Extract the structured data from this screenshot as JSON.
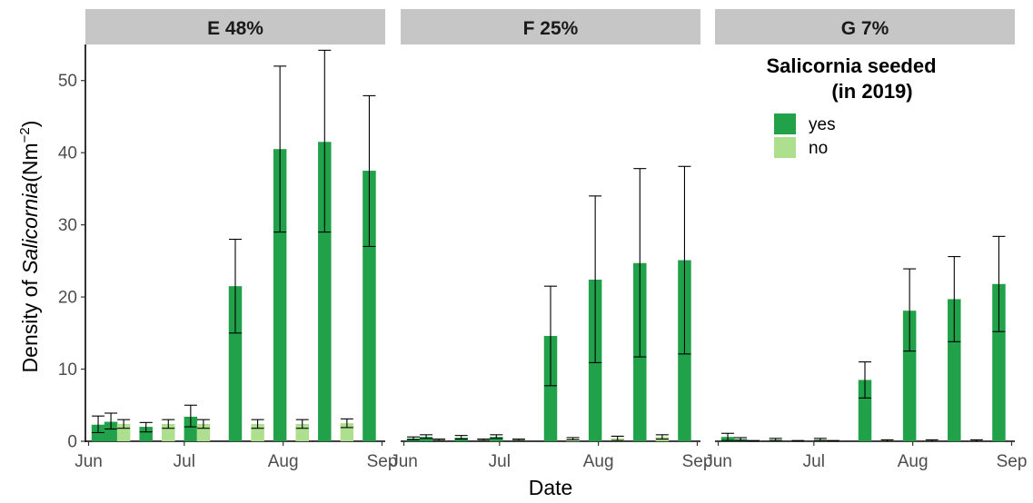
{
  "chart_data": {
    "type": "bar",
    "xlabel": "Date",
    "ylabel_prefix": "Density of ",
    "ylabel_italic": "Salicornia",
    "ylabel_unit": "(Nm",
    "ylabel_exp": "−2",
    "ylabel_close": ")",
    "ylim": [
      0,
      55
    ],
    "y_ticks": [
      0,
      10,
      20,
      30,
      40,
      50
    ],
    "x_ticks": [
      "Jun",
      "Jul",
      "Aug",
      "Sep"
    ],
    "x_range": [
      "2019-05-31",
      "2019-09-02"
    ],
    "grid": false,
    "legend": {
      "title_line1": "Salicornia seeded",
      "title_line2": "(in 2019)",
      "position": "top-right",
      "entries": [
        {
          "label": "yes",
          "color": "#22a14b"
        },
        {
          "label": "no",
          "color": "#addf8f"
        }
      ]
    },
    "panels": [
      {
        "title": "E 48%",
        "series": [
          {
            "name": "yes",
            "color": "#22a14b",
            "points": [
              {
                "date": "2019-06-04",
                "mean": 2.3,
                "lo": 1.2,
                "hi": 3.5
              },
              {
                "date": "2019-06-08",
                "mean": 2.7,
                "lo": 1.7,
                "hi": 3.9
              },
              {
                "date": "2019-06-19",
                "mean": 2.0,
                "lo": 1.3,
                "hi": 2.6
              },
              {
                "date": "2019-07-03",
                "mean": 3.4,
                "lo": 2.0,
                "hi": 5.0
              },
              {
                "date": "2019-07-17",
                "mean": 21.5,
                "lo": 15.0,
                "hi": 28.0
              },
              {
                "date": "2019-07-31",
                "mean": 40.5,
                "lo": 29.0,
                "hi": 52.0
              },
              {
                "date": "2019-08-14",
                "mean": 41.5,
                "lo": 29.0,
                "hi": 54.2
              },
              {
                "date": "2019-08-28",
                "mean": 37.5,
                "lo": 27.0,
                "hi": 47.9
              }
            ]
          },
          {
            "name": "no",
            "color": "#addf8f",
            "points": [
              {
                "date": "2019-06-12",
                "mean": 2.4,
                "lo": 1.8,
                "hi": 3.0
              },
              {
                "date": "2019-06-26",
                "mean": 2.4,
                "lo": 1.8,
                "hi": 3.0
              },
              {
                "date": "2019-07-07",
                "mean": 2.4,
                "lo": 1.8,
                "hi": 3.0
              },
              {
                "date": "2019-07-24",
                "mean": 2.4,
                "lo": 1.8,
                "hi": 3.0
              },
              {
                "date": "2019-08-07",
                "mean": 2.4,
                "lo": 1.8,
                "hi": 3.0
              },
              {
                "date": "2019-08-21",
                "mean": 2.5,
                "lo": 1.9,
                "hi": 3.1
              }
            ]
          }
        ]
      },
      {
        "title": "F 25%",
        "series": [
          {
            "name": "yes",
            "color": "#22a14b",
            "points": [
              {
                "date": "2019-06-04",
                "mean": 0.4,
                "lo": 0.2,
                "hi": 0.6
              },
              {
                "date": "2019-06-08",
                "mean": 0.6,
                "lo": 0.4,
                "hi": 0.9
              },
              {
                "date": "2019-06-19",
                "mean": 0.5,
                "lo": 0.3,
                "hi": 0.8
              },
              {
                "date": "2019-06-30",
                "mean": 0.6,
                "lo": 0.4,
                "hi": 0.9
              },
              {
                "date": "2019-07-17",
                "mean": 14.6,
                "lo": 7.7,
                "hi": 21.5
              },
              {
                "date": "2019-07-31",
                "mean": 22.4,
                "lo": 10.9,
                "hi": 34.0
              },
              {
                "date": "2019-08-14",
                "mean": 24.7,
                "lo": 11.7,
                "hi": 37.8
              },
              {
                "date": "2019-08-28",
                "mean": 25.1,
                "lo": 12.1,
                "hi": 38.1
              }
            ]
          },
          {
            "name": "no",
            "color": "#addf8f",
            "points": [
              {
                "date": "2019-06-12",
                "mean": 0.2,
                "lo": 0.1,
                "hi": 0.3
              },
              {
                "date": "2019-06-26",
                "mean": 0.2,
                "lo": 0.1,
                "hi": 0.3
              },
              {
                "date": "2019-07-07",
                "mean": 0.2,
                "lo": 0.1,
                "hi": 0.3
              },
              {
                "date": "2019-07-24",
                "mean": 0.3,
                "lo": 0.2,
                "hi": 0.5
              },
              {
                "date": "2019-08-07",
                "mean": 0.4,
                "lo": 0.1,
                "hi": 0.7
              },
              {
                "date": "2019-08-21",
                "mean": 0.6,
                "lo": 0.3,
                "hi": 0.9
              }
            ]
          }
        ]
      },
      {
        "title": "G 7%",
        "series": [
          {
            "name": "yes",
            "color": "#22a14b",
            "points": [
              {
                "date": "2019-06-04",
                "mean": 0.6,
                "lo": 0.1,
                "hi": 1.1
              },
              {
                "date": "2019-06-08",
                "mean": 0.3,
                "lo": 0.1,
                "hi": 0.5
              },
              {
                "date": "2019-06-19",
                "mean": 0.2,
                "lo": 0.1,
                "hi": 0.4
              },
              {
                "date": "2019-07-03",
                "mean": 0.2,
                "lo": 0.1,
                "hi": 0.4
              },
              {
                "date": "2019-07-17",
                "mean": 8.5,
                "lo": 6.0,
                "hi": 11.0
              },
              {
                "date": "2019-07-31",
                "mean": 18.1,
                "lo": 12.5,
                "hi": 23.9
              },
              {
                "date": "2019-08-14",
                "mean": 19.7,
                "lo": 13.8,
                "hi": 25.6
              },
              {
                "date": "2019-08-28",
                "mean": 21.8,
                "lo": 15.2,
                "hi": 28.4
              }
            ]
          },
          {
            "name": "no",
            "color": "#addf8f",
            "points": [
              {
                "date": "2019-06-12",
                "mean": 0.05,
                "lo": 0.0,
                "hi": 0.1
              },
              {
                "date": "2019-06-26",
                "mean": 0.05,
                "lo": 0.0,
                "hi": 0.1
              },
              {
                "date": "2019-07-07",
                "mean": 0.05,
                "lo": 0.0,
                "hi": 0.1
              },
              {
                "date": "2019-07-24",
                "mean": 0.1,
                "lo": 0.0,
                "hi": 0.2
              },
              {
                "date": "2019-08-07",
                "mean": 0.1,
                "lo": 0.0,
                "hi": 0.2
              },
              {
                "date": "2019-08-21",
                "mean": 0.1,
                "lo": 0.0,
                "hi": 0.2
              }
            ]
          }
        ]
      }
    ]
  }
}
